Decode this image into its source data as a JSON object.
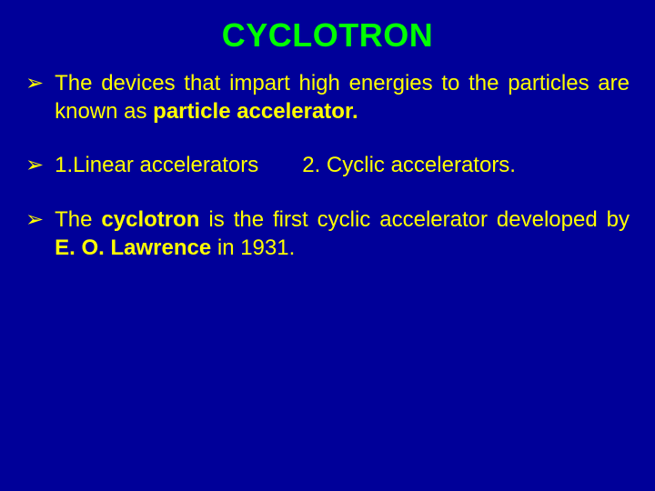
{
  "colors": {
    "background": "#000099",
    "title": "#00ff00",
    "body": "#ffff00"
  },
  "typography": {
    "title_fontsize": 36,
    "body_fontsize": 24,
    "font_family": "Arial"
  },
  "title": "CYCLOTRON",
  "bullet_marker": "➢",
  "bullets": {
    "b1": {
      "pre": "The devices that impart high energies to the particles are known as ",
      "bold": "particle accelerator."
    },
    "b2": {
      "left": "1.Linear accelerators",
      "right": "2. Cyclic accelerators."
    },
    "b3": {
      "s1": "The ",
      "s2_bold": "cyclotron",
      "s3": " is the first cyclic accelerator developed by ",
      "s4_bold": "E. O. Lawrence",
      "s5": " in 1931."
    }
  }
}
